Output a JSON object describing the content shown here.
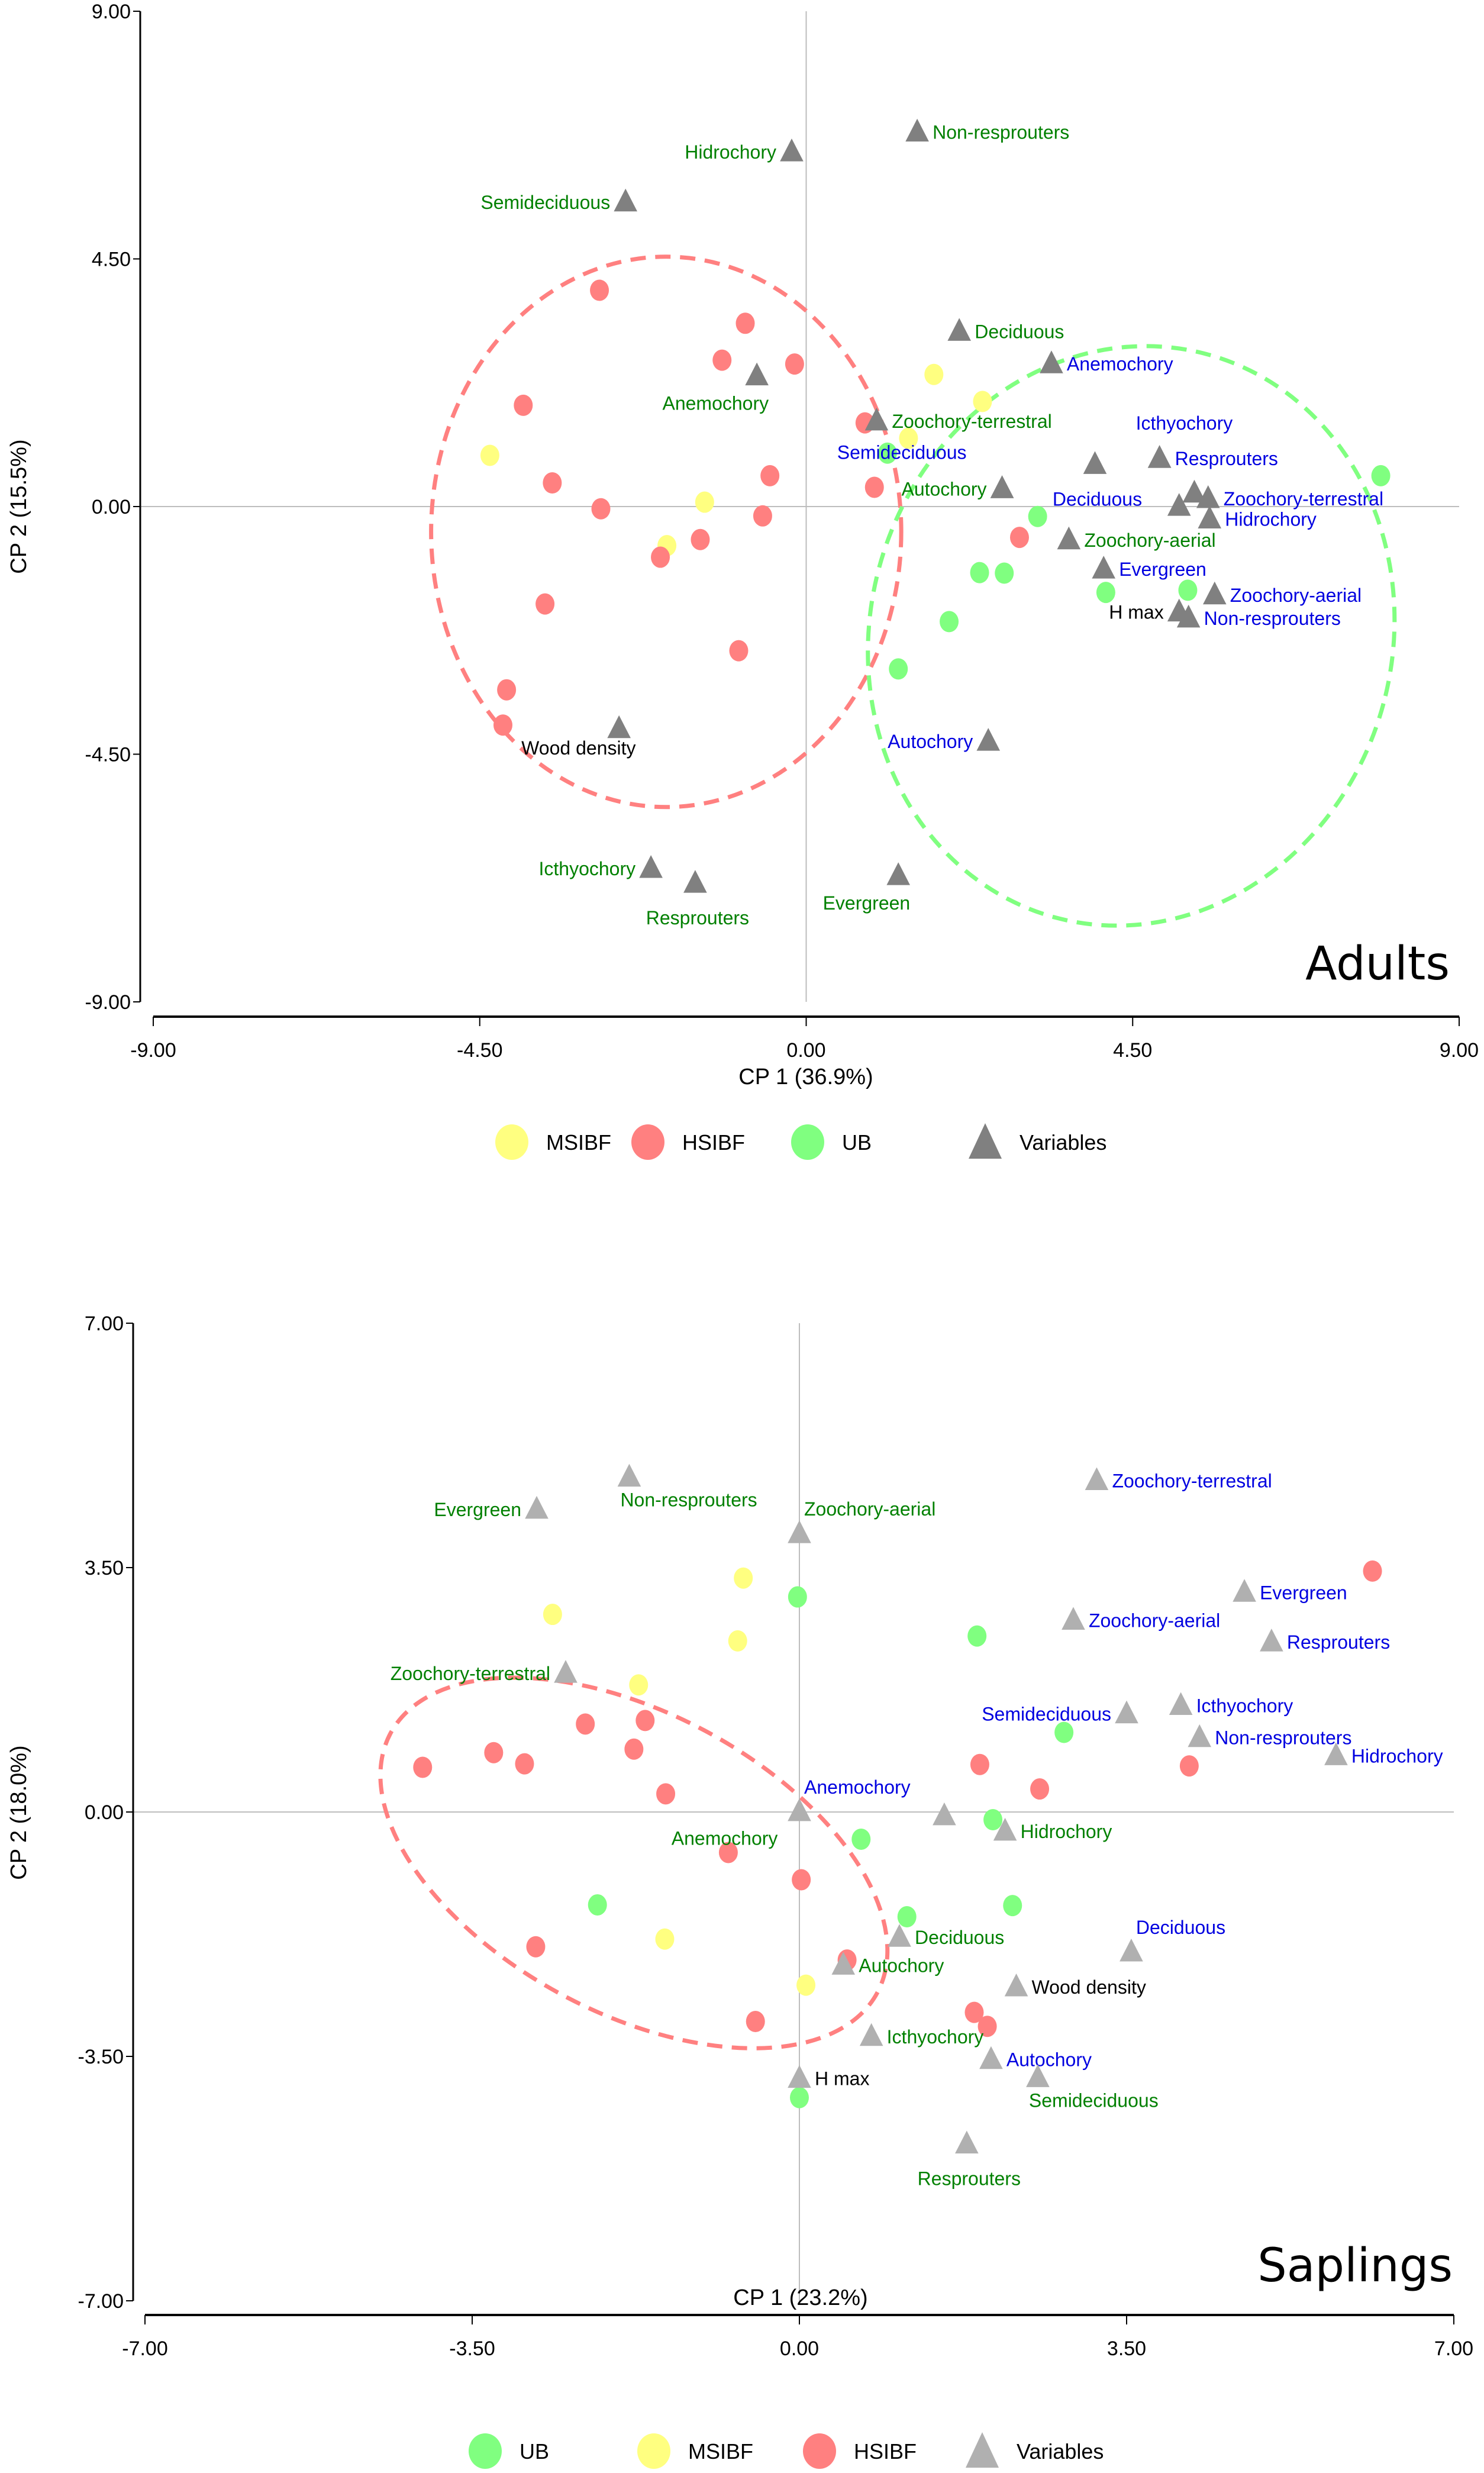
{
  "colors": {
    "MSIBF": "#ffff80",
    "HSIBF": "#ff8080",
    "UB": "#80ff80",
    "variables_adults": "#808080",
    "variables_saplings": "#b0b0b0",
    "label_green": "#008000",
    "label_blue": "#0000e0",
    "label_black": "#000000"
  },
  "chart_data": [
    {
      "type": "scatter",
      "title": "Adults",
      "xlabel": "CP 1 (36.9%)",
      "ylabel": "CP 2 (15.5%)",
      "xlim": [
        -9,
        9
      ],
      "ylim": [
        -9,
        9
      ],
      "xticks": [
        "-9.00",
        "-4.50",
        "0.00",
        "4.50",
        "9.00"
      ],
      "yticks": [
        "9.00",
        "4.50",
        "0.00",
        "-4.50",
        "-9.00"
      ],
      "xtick_values": [
        -9,
        -4.5,
        0,
        4.5,
        9
      ],
      "ytick_values": [
        9,
        4.5,
        0,
        -4.5,
        -9
      ],
      "legend": [
        {
          "label": "MSIBF",
          "shape": "circle",
          "group": "MSIBF"
        },
        {
          "label": "HSIBF",
          "shape": "circle",
          "group": "HSIBF"
        },
        {
          "label": "UB",
          "shape": "circle",
          "group": "UB"
        },
        {
          "label": "Variables",
          "shape": "triangle",
          "group": "variables"
        }
      ],
      "legend_position": "bottom",
      "sites": {
        "MSIBF": [
          [
            1.76,
            2.4
          ],
          [
            2.43,
            1.91
          ],
          [
            1.41,
            1.24
          ],
          [
            -4.36,
            0.93
          ],
          [
            -1.4,
            0.08
          ],
          [
            -1.92,
            -0.71
          ]
        ],
        "HSIBF": [
          [
            -2.85,
            3.93
          ],
          [
            -0.84,
            3.33
          ],
          [
            -1.16,
            2.66
          ],
          [
            -0.16,
            2.59
          ],
          [
            -3.9,
            1.84
          ],
          [
            0.81,
            1.52
          ],
          [
            -3.5,
            0.43
          ],
          [
            -0.5,
            0.56
          ],
          [
            -2.83,
            -0.04
          ],
          [
            0.94,
            0.35
          ],
          [
            -0.6,
            -0.17
          ],
          [
            -1.46,
            -0.6
          ],
          [
            -2.01,
            -0.92
          ],
          [
            2.94,
            -0.56
          ],
          [
            -3.6,
            -1.77
          ],
          [
            -0.93,
            -2.62
          ],
          [
            -4.13,
            -3.33
          ],
          [
            -4.18,
            -3.97
          ]
        ],
        "UB": [
          [
            1.12,
            0.97
          ],
          [
            3.19,
            -0.18
          ],
          [
            2.39,
            -1.2
          ],
          [
            2.73,
            -1.21
          ],
          [
            4.13,
            -1.56
          ],
          [
            5.26,
            -1.52
          ],
          [
            1.97,
            -2.09
          ],
          [
            1.27,
            -2.95
          ],
          [
            7.92,
            0.56
          ]
        ]
      },
      "variables": [
        {
          "label": "Non-resprouters",
          "x": 1.53,
          "y": 6.81,
          "color": "green",
          "anchor": "right"
        },
        {
          "label": "Hidrochory",
          "x": -0.2,
          "y": 6.45,
          "color": "green",
          "anchor": "left"
        },
        {
          "label": "Semideciduous",
          "x": -2.49,
          "y": 5.54,
          "color": "green",
          "anchor": "left"
        },
        {
          "label": "Deciduous",
          "x": 2.11,
          "y": 3.19,
          "color": "green",
          "anchor": "right"
        },
        {
          "label": "Anemochory",
          "x": 3.38,
          "y": 2.6,
          "color": "blue",
          "anchor": "right"
        },
        {
          "label": "Anemochory",
          "x": -0.68,
          "y": 2.38,
          "color": "green",
          "anchor": "below-left"
        },
        {
          "label": "Zoochory-terrestral",
          "x": 0.97,
          "y": 1.56,
          "color": "green",
          "anchor": "right"
        },
        {
          "label": "Deciduous",
          "x": 3.98,
          "y": 0.77,
          "color": "blue",
          "anchor": "below"
        },
        {
          "label": "Resprouters",
          "x": 4.87,
          "y": 0.88,
          "color": "blue",
          "anchor": "right"
        },
        {
          "label": "Icthyochory",
          "x": 4.87,
          "y": 0.88,
          "color": "blue",
          "anchor": "above"
        },
        {
          "label": "Semideciduous",
          "x": 2.7,
          "y": 0.33,
          "color": "blue",
          "anchor": "above-left"
        },
        {
          "label": "Autochory",
          "x": 2.7,
          "y": 0.33,
          "color": "green",
          "anchor": "left"
        },
        {
          "label": "Zoochory-terrestral",
          "x": 5.54,
          "y": 0.15,
          "color": "blue",
          "anchor": "right"
        },
        {
          "label": "",
          "x": 5.35,
          "y": 0.25,
          "color": "blue",
          "anchor": "right"
        },
        {
          "label": "",
          "x": 5.14,
          "y": 0.01,
          "color": "blue",
          "anchor": "right"
        },
        {
          "label": "Hidrochory",
          "x": 5.56,
          "y": -0.22,
          "color": "blue",
          "anchor": "right"
        },
        {
          "label": "Zoochory-aerial",
          "x": 3.62,
          "y": -0.6,
          "color": "green",
          "anchor": "right"
        },
        {
          "label": "Evergreen",
          "x": 4.1,
          "y": -1.13,
          "color": "blue",
          "anchor": "right"
        },
        {
          "label": "Zoochory-aerial",
          "x": 5.63,
          "y": -1.6,
          "color": "blue",
          "anchor": "right"
        },
        {
          "label": "H max",
          "x": 5.14,
          "y": -1.91,
          "color": "black",
          "anchor": "left"
        },
        {
          "label": "Non-resprouters",
          "x": 5.27,
          "y": -2.02,
          "color": "blue",
          "anchor": "right"
        },
        {
          "label": "Wood density",
          "x": -2.58,
          "y": -4.03,
          "color": "black",
          "anchor": "below-left-small"
        },
        {
          "label": "Autochory",
          "x": 2.51,
          "y": -4.26,
          "color": "blue",
          "anchor": "left"
        },
        {
          "label": "Icthyochory",
          "x": -2.14,
          "y": -6.57,
          "color": "green",
          "anchor": "left"
        },
        {
          "label": "Evergreen",
          "x": 1.27,
          "y": -6.7,
          "color": "green",
          "anchor": "below-left"
        },
        {
          "label": "Resprouters",
          "x": -1.53,
          "y": -6.84,
          "color": "green",
          "anchor": "below"
        }
      ],
      "ellipses": [
        {
          "group": "HSIBF",
          "cx": -1.93,
          "cy": -0.46,
          "rx": 3.24,
          "ry": 5.0,
          "rotation_deg": 0
        },
        {
          "group": "UB",
          "cx": 4.48,
          "cy": -2.35,
          "rx": 3.6,
          "ry": 5.3,
          "rotation_deg": 15
        }
      ]
    },
    {
      "type": "scatter",
      "title": "Saplings",
      "xlabel": "CP 1 (23.2%)",
      "ylabel": "CP 2 (18.0%)",
      "xlim": [
        -7,
        7
      ],
      "ylim": [
        -7,
        7
      ],
      "xticks": [
        "-7.00",
        "-3.50",
        "0.00",
        "3.50",
        "7.00"
      ],
      "yticks": [
        "7.00",
        "3.50",
        "0.00",
        "-3.50",
        "-7.00"
      ],
      "xtick_values": [
        -7,
        -3.5,
        0,
        3.5,
        7
      ],
      "ytick_values": [
        7,
        3.5,
        0,
        -3.5,
        -7
      ],
      "legend": [
        {
          "label": "UB",
          "shape": "circle",
          "group": "UB"
        },
        {
          "label": "MSIBF",
          "shape": "circle",
          "group": "MSIBF"
        },
        {
          "label": "HSIBF",
          "shape": "circle",
          "group": "HSIBF"
        },
        {
          "label": "Variables",
          "shape": "triangle",
          "group": "variables"
        }
      ],
      "legend_position": "bottom",
      "sites": {
        "UB": [
          [
            -0.02,
            3.08
          ],
          [
            1.9,
            2.52
          ],
          [
            2.83,
            1.14
          ],
          [
            2.07,
            -0.11
          ],
          [
            0.66,
            -0.39
          ],
          [
            -2.16,
            -1.33
          ],
          [
            2.28,
            -1.34
          ],
          [
            1.15,
            -1.5
          ],
          [
            0.0,
            -4.09
          ]
        ],
        "MSIBF": [
          [
            -0.6,
            3.35
          ],
          [
            -2.64,
            2.83
          ],
          [
            -0.66,
            2.45
          ],
          [
            -1.72,
            1.82
          ],
          [
            -1.44,
            -1.82
          ],
          [
            0.07,
            -2.48
          ]
        ],
        "HSIBF": [
          [
            6.13,
            3.45
          ],
          [
            -2.29,
            1.26
          ],
          [
            -1.65,
            1.31
          ],
          [
            -3.27,
            0.85
          ],
          [
            -1.77,
            0.9
          ],
          [
            -2.94,
            0.69
          ],
          [
            -4.03,
            0.64
          ],
          [
            -1.43,
            0.26
          ],
          [
            1.93,
            0.68
          ],
          [
            4.17,
            0.66
          ],
          [
            2.57,
            0.33
          ],
          [
            -0.76,
            -0.58
          ],
          [
            0.02,
            -0.97
          ],
          [
            -2.82,
            -1.93
          ],
          [
            0.51,
            -2.12
          ],
          [
            -0.47,
            -3.0
          ],
          [
            1.87,
            -2.87
          ],
          [
            2.01,
            -3.07
          ]
        ]
      },
      "variables": [
        {
          "label": "Non-resprouters",
          "x": -1.82,
          "y": 4.8,
          "color": "green",
          "anchor": "below-right"
        },
        {
          "label": "Evergreen",
          "x": -2.81,
          "y": 4.34,
          "color": "green",
          "anchor": "left-large"
        },
        {
          "label": "Zoochory-aerial",
          "x": 0.0,
          "y": 3.99,
          "color": "green",
          "anchor": "above-right"
        },
        {
          "label": "Zoochory-terrestral",
          "x": 3.18,
          "y": 4.75,
          "color": "blue",
          "anchor": "right-large"
        },
        {
          "label": "Evergreen",
          "x": 4.76,
          "y": 3.15,
          "color": "blue",
          "anchor": "right"
        },
        {
          "label": "Zoochory-aerial",
          "x": 2.93,
          "y": 2.75,
          "color": "blue",
          "anchor": "right"
        },
        {
          "label": "Resprouters",
          "x": 5.05,
          "y": 2.44,
          "color": "blue",
          "anchor": "right"
        },
        {
          "label": "Zoochory-terrestral",
          "x": -2.5,
          "y": 1.99,
          "color": "green",
          "anchor": "left-large"
        },
        {
          "label": "Icthyochory",
          "x": 4.08,
          "y": 1.53,
          "color": "blue",
          "anchor": "right"
        },
        {
          "label": "Semideciduous",
          "x": 3.5,
          "y": 1.41,
          "color": "blue",
          "anchor": "left"
        },
        {
          "label": "Non-resprouters",
          "x": 4.28,
          "y": 1.07,
          "color": "blue",
          "anchor": "right-small"
        },
        {
          "label": "Hidrochory",
          "x": 5.74,
          "y": 0.81,
          "color": "blue",
          "anchor": "right"
        },
        {
          "label": "Anemochory",
          "x": 0.0,
          "y": 0.01,
          "color": "blue",
          "anchor": "above-right"
        },
        {
          "label": "Anemochory",
          "x": -0.8,
          "y": -0.35,
          "color": "green",
          "anchor": "text-only-large"
        },
        {
          "label": "",
          "x": 1.55,
          "y": -0.05,
          "color": "blue",
          "anchor": "right"
        },
        {
          "label": "Hidrochory",
          "x": 2.2,
          "y": -0.27,
          "color": "green",
          "anchor": "right"
        },
        {
          "label": "Deciduous",
          "x": 1.07,
          "y": -1.79,
          "color": "green",
          "anchor": "right"
        },
        {
          "label": "Deciduous",
          "x": 3.55,
          "y": -2.0,
          "color": "blue",
          "anchor": "above-right"
        },
        {
          "label": "Autochory",
          "x": 0.47,
          "y": -2.19,
          "color": "green",
          "anchor": "right"
        },
        {
          "label": "Wood density",
          "x": 2.32,
          "y": -2.5,
          "color": "black",
          "anchor": "right"
        },
        {
          "label": "Icthyochory",
          "x": 0.77,
          "y": -3.21,
          "color": "green",
          "anchor": "right"
        },
        {
          "label": "Autochory",
          "x": 2.05,
          "y": -3.54,
          "color": "blue",
          "anchor": "right"
        },
        {
          "label": "H max",
          "x": 0.0,
          "y": -3.81,
          "color": "black",
          "anchor": "right"
        },
        {
          "label": "Semideciduous",
          "x": 2.55,
          "y": -3.8,
          "color": "green",
          "anchor": "below-right"
        },
        {
          "label": "Resprouters",
          "x": 1.79,
          "y": -4.75,
          "color": "green",
          "anchor": "below"
        }
      ],
      "ellipses": [
        {
          "group": "HSIBF",
          "cx": -1.77,
          "cy": -0.73,
          "rx": 2.95,
          "ry": 2.15,
          "rotation_deg": 28
        }
      ]
    }
  ]
}
